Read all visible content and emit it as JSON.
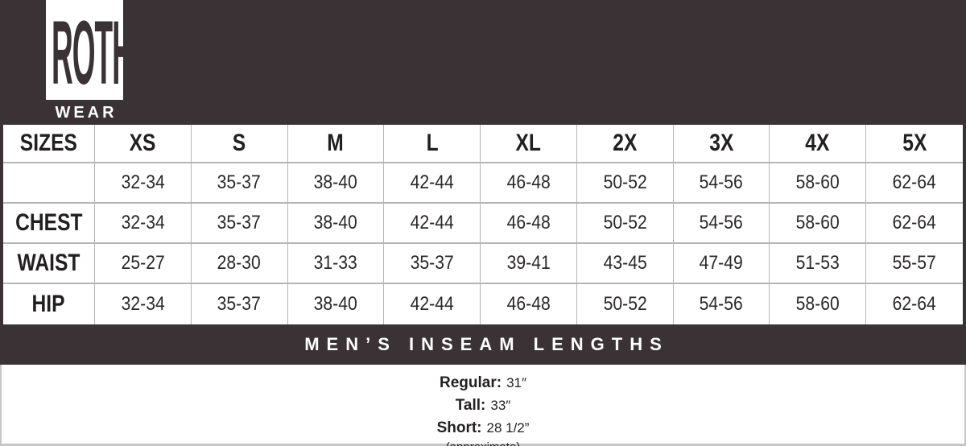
{
  "colors": {
    "band_dark": "#3a3234",
    "grid_line": "#b5b5b5",
    "table_text": "#231f20",
    "logo_box": "#ffffff"
  },
  "brand": {
    "top": "ROTH",
    "bottom": "WEAR"
  },
  "table": {
    "headers": [
      "SIZES",
      "XS",
      "S",
      "M",
      "L",
      "XL",
      "2X",
      "3X",
      "4X",
      "5X"
    ],
    "rows": [
      {
        "label": "",
        "values": [
          "32-34",
          "35-37",
          "38-40",
          "42-44",
          "46-48",
          "50-52",
          "54-56",
          "58-60",
          "62-64"
        ]
      },
      {
        "label": "CHEST",
        "values": [
          "32-34",
          "35-37",
          "38-40",
          "42-44",
          "46-48",
          "50-52",
          "54-56",
          "58-60",
          "62-64"
        ]
      },
      {
        "label": "WAIST",
        "values": [
          "25-27",
          "28-30",
          "31-33",
          "35-37",
          "39-41",
          "43-45",
          "47-49",
          "51-53",
          "55-57"
        ]
      },
      {
        "label": "HIP",
        "values": [
          "32-34",
          "35-37",
          "38-40",
          "42-44",
          "46-48",
          "50-52",
          "54-56",
          "58-60",
          "62-64"
        ]
      }
    ]
  },
  "inseam": {
    "title": "MEN’S INSEAM LENGTHS",
    "entries": [
      {
        "label": "Regular:",
        "value": "31″"
      },
      {
        "label": "Tall:",
        "value": "33″"
      },
      {
        "label": "Short:",
        "value": "28 1/2”"
      }
    ],
    "note": "(approximate)"
  }
}
